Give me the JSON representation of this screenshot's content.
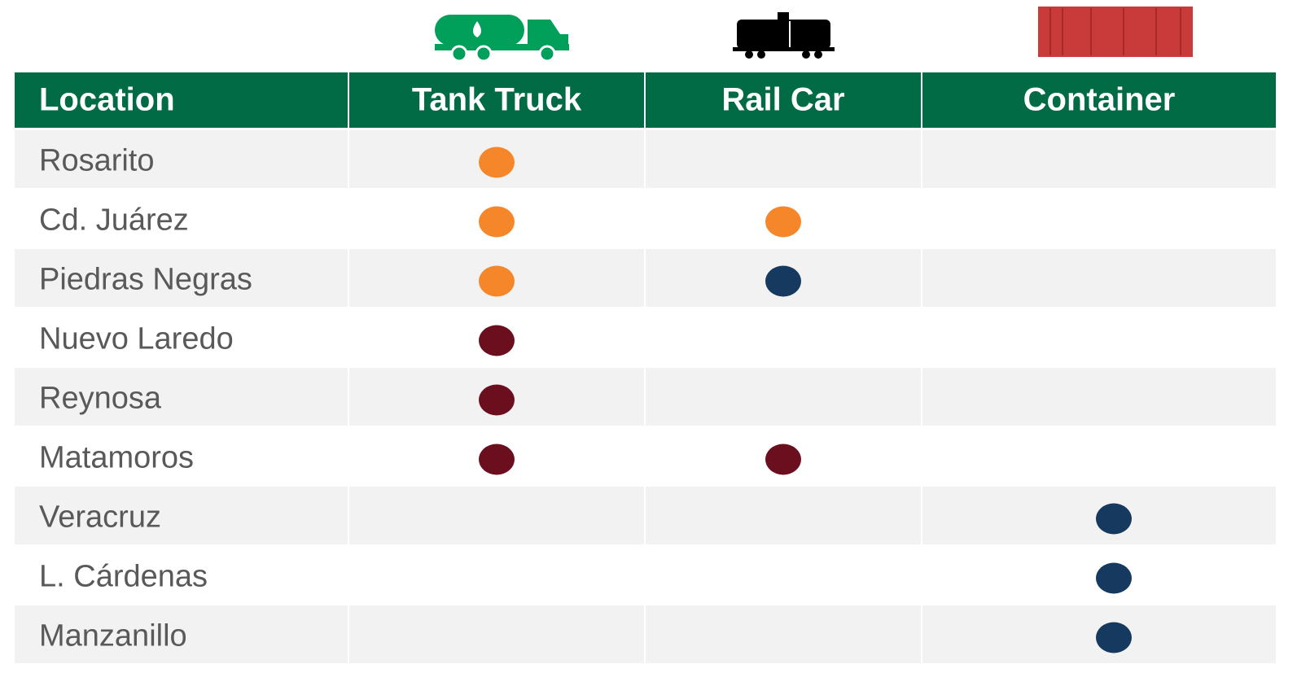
{
  "table": {
    "header": [
      "Location",
      "Tank Truck",
      "Rail Car",
      "Container"
    ],
    "rows": [
      {
        "location": "Rosarito",
        "marks": [
          "#f5862a",
          null,
          null
        ]
      },
      {
        "location": "Cd. Juárez",
        "marks": [
          "#f5862a",
          "#f5862a",
          null
        ]
      },
      {
        "location": "Piedras Negras",
        "marks": [
          "#f5862a",
          "#163a5f",
          null
        ]
      },
      {
        "location": "Nuevo Laredo",
        "marks": [
          "#6b0f1e",
          null,
          null
        ]
      },
      {
        "location": "Reynosa",
        "marks": [
          "#6b0f1e",
          null,
          null
        ]
      },
      {
        "location": "Matamoros",
        "marks": [
          "#6b0f1e",
          "#6b0f1e",
          null
        ]
      },
      {
        "location": "Veracruz",
        "marks": [
          null,
          null,
          "#163a5f"
        ]
      },
      {
        "location": "L. Cárdenas",
        "marks": [
          null,
          null,
          "#163a5f"
        ]
      },
      {
        "location": "Manzanillo",
        "marks": [
          null,
          null,
          "#163a5f"
        ]
      }
    ]
  }
}
